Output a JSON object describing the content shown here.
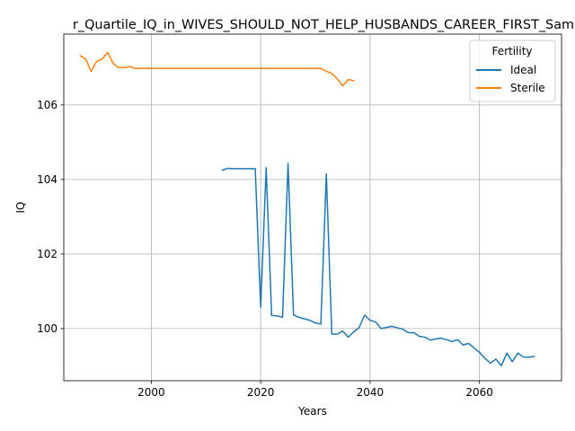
{
  "chart_data": {
    "type": "line",
    "title": "r_Quartile_IQ_in_WIVES_SHOULD_NOT_HELP_HUSBANDS_CAREER_FIRST_Sam",
    "xlabel": "Years",
    "ylabel": "IQ",
    "xlim": [
      1984,
      2075
    ],
    "ylim": [
      98.6,
      107.9
    ],
    "xticks": [
      2000,
      2020,
      2040,
      2060
    ],
    "xtick_labels": [
      "2000",
      "2020",
      "2040",
      "2060"
    ],
    "yticks": [
      100,
      102,
      104,
      106
    ],
    "ytick_labels": [
      "100",
      "102",
      "104",
      "106"
    ],
    "grid": true,
    "legend": {
      "title": "Fertility",
      "placement": "top-right",
      "entries": [
        "Ideal",
        "Sterile"
      ]
    },
    "series": [
      {
        "name": "Ideal",
        "color": "#1f77b4",
        "x": [
          2013,
          2014,
          2015,
          2016,
          2017,
          2018,
          2019,
          2020,
          2021,
          2022,
          2023,
          2024,
          2025,
          2026,
          2027,
          2028,
          2029,
          2030,
          2031,
          2032,
          2033,
          2034,
          2035,
          2036,
          2037,
          2038,
          2039,
          2040,
          2041,
          2042,
          2043,
          2044,
          2045,
          2046,
          2047,
          2048,
          2049,
          2050,
          2051,
          2052,
          2053,
          2054,
          2055,
          2056,
          2057,
          2058,
          2059,
          2060,
          2061,
          2062,
          2063,
          2064,
          2065,
          2066,
          2067,
          2068,
          2069,
          2070
        ],
        "y": [
          104.25,
          104.3,
          104.29,
          104.29,
          104.29,
          104.29,
          104.29,
          100.57,
          104.32,
          100.35,
          100.34,
          100.3,
          104.43,
          100.37,
          100.3,
          100.26,
          100.22,
          100.15,
          100.12,
          104.15,
          99.85,
          99.85,
          99.93,
          99.77,
          99.91,
          100.03,
          100.36,
          100.22,
          100.18,
          100.0,
          100.03,
          100.06,
          100.02,
          99.98,
          99.89,
          99.89,
          99.79,
          99.77,
          99.69,
          99.72,
          99.74,
          99.7,
          99.65,
          99.7,
          99.56,
          99.6,
          99.48,
          99.36,
          99.2,
          99.07,
          99.18,
          99.0,
          99.34,
          99.11,
          99.34,
          99.24,
          99.23,
          99.25
        ]
      },
      {
        "name": "Sterile",
        "color": "#ff7f0e",
        "x": [
          1987,
          1988,
          1989,
          1990,
          1991,
          1992,
          1993,
          1994,
          1995,
          1996,
          1997,
          1998,
          2000,
          2005,
          2010,
          2015,
          2020,
          2025,
          2030,
          2031,
          2032,
          2033,
          2034,
          2035,
          2036,
          2037
        ],
        "y": [
          107.32,
          107.23,
          106.9,
          107.17,
          107.23,
          107.41,
          107.12,
          107.0,
          107.0,
          107.03,
          106.98,
          106.98,
          106.98,
          106.98,
          106.98,
          106.98,
          106.98,
          106.98,
          106.98,
          106.98,
          106.9,
          106.85,
          106.7,
          106.51,
          106.68,
          106.65
        ]
      }
    ]
  }
}
